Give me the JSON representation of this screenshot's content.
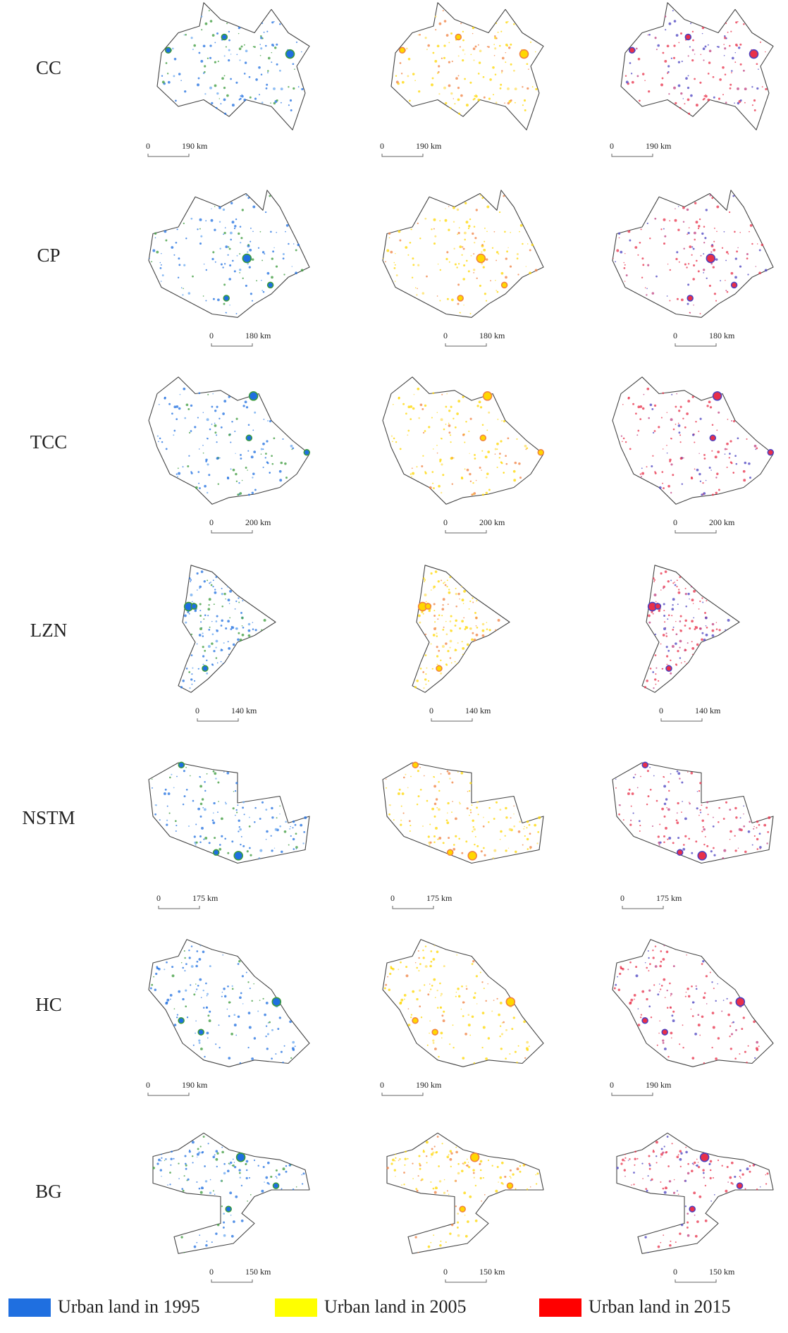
{
  "rows": [
    {
      "label": "CC",
      "scale": [
        "0",
        "190 km"
      ]
    },
    {
      "label": "CP",
      "scale": [
        "0",
        "180 km"
      ]
    },
    {
      "label": "TCC",
      "scale": [
        "0",
        "200 km"
      ]
    },
    {
      "label": "LZN",
      "scale": [
        "0",
        "140 km"
      ]
    },
    {
      "label": "NSTM",
      "scale": [
        "0",
        "175 km"
      ]
    },
    {
      "label": "HC",
      "scale": [
        "0",
        "190 km"
      ]
    },
    {
      "label": "BG",
      "scale": [
        "0",
        "150 km"
      ]
    }
  ],
  "legend": [
    {
      "label": "Urban land in 1995",
      "color": "#1f6fe0"
    },
    {
      "label": "Urban land in 2005",
      "color": "#ffff00"
    },
    {
      "label": "Urban land in 2015",
      "color": "#ff0000"
    }
  ]
}
